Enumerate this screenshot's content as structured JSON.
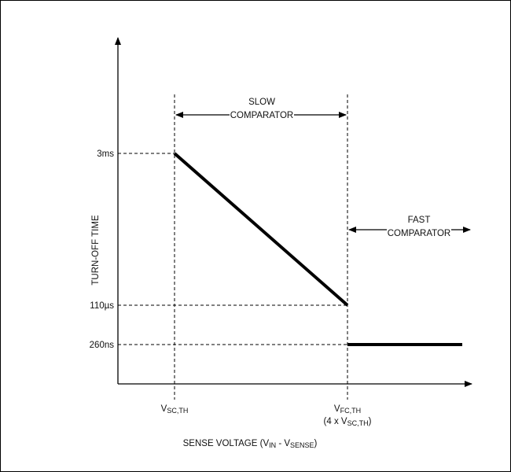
{
  "chart_data": {
    "type": "line",
    "title": "",
    "y_axis": {
      "label": "TURN-OFF TIME",
      "ticks": [
        "3ms",
        "110µs",
        "260ns"
      ]
    },
    "x_axis": {
      "label": {
        "main": "SENSE VOLTAGE (V",
        "sub1": "IN",
        "mid": " - V",
        "sub2": "SENSE",
        "end": ")"
      },
      "ticks": [
        {
          "main": "V",
          "sub": "SC,TH"
        },
        {
          "main": "V",
          "sub": "FC,TH"
        }
      ],
      "tick2_note": {
        "pre": "(4 x V",
        "sub": "SC,TH",
        "post": ")"
      }
    },
    "regions": [
      {
        "name": "slow",
        "line1": "SLOW",
        "line2": "COMPARATOR"
      },
      {
        "name": "fast",
        "line1": "FAST",
        "line2": "COMPARATOR"
      }
    ],
    "series": [
      {
        "points": [
          [
            "VSC,TH",
            "3ms"
          ],
          [
            "VFC,TH",
            "110µs"
          ]
        ]
      },
      {
        "points": [
          [
            "VFC,TH",
            "260ns"
          ],
          [
            "end",
            "260ns"
          ]
        ]
      }
    ],
    "grid": false,
    "legend": "none"
  }
}
